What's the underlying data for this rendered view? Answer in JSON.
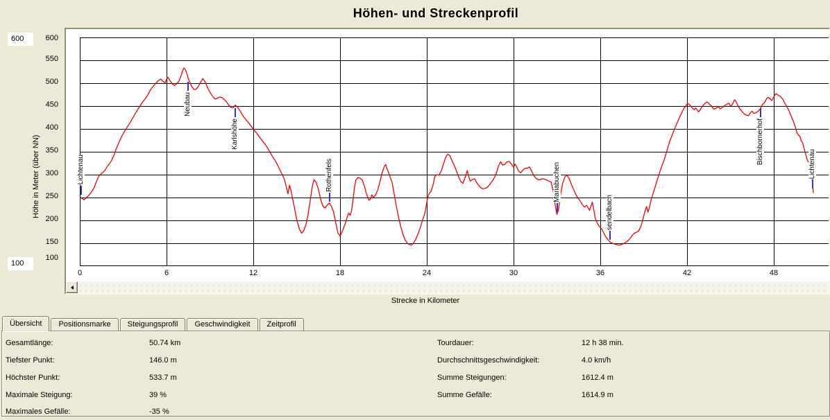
{
  "header": {
    "title": "Höhen- und Streckenprofil"
  },
  "colors": {
    "window_background": "#ece9d8",
    "plot_background": "#ffffff",
    "grid": "#000000",
    "profile_line": "#f00000",
    "waypoint_marker": "#3333cc"
  },
  "axis_controls": {
    "y_max": "600",
    "y_min": "100"
  },
  "icons": {
    "scroll_left": "left-triangle"
  },
  "chart_data": {
    "type": "line",
    "title": "Höhen- und Streckenprofil",
    "xlabel": "Strecke in Kilometer",
    "ylabel": "Höhe in Meter (über NN)",
    "ylim": [
      100,
      600
    ],
    "xlim": [
      0,
      51.8
    ],
    "x_ticks": [
      0,
      6,
      12,
      18,
      24,
      30,
      36,
      42,
      48
    ],
    "y_ticks": [
      600,
      550,
      500,
      450,
      400,
      350,
      300,
      250,
      200,
      150,
      100
    ],
    "grid": true,
    "series_color": "#f00000",
    "marker_color": "#3333cc",
    "waypoints": [
      {
        "name": "Lichtenau",
        "km": 0.1,
        "elevation": 252,
        "side": "above"
      },
      {
        "name": "Neubau",
        "km": 7.5,
        "elevation": 508,
        "side": "below"
      },
      {
        "name": "Karlshöhe",
        "km": 10.75,
        "elevation": 450,
        "side": "below"
      },
      {
        "name": "Rothenfels",
        "km": 17.3,
        "elevation": 236,
        "side": "above"
      },
      {
        "name": "Mariabuchen",
        "km": 33.0,
        "elevation": 214,
        "side": "above"
      },
      {
        "name": "sendelbach",
        "km": 36.65,
        "elevation": 153,
        "side": "above"
      },
      {
        "name": "Bischbornerhof",
        "km": 47.1,
        "elevation": 450,
        "side": "below"
      },
      {
        "name": "Lichtenau",
        "km": 50.68,
        "elevation": 265,
        "side": "above"
      }
    ],
    "profile": [
      [
        0,
        252
      ],
      [
        0.15,
        248
      ],
      [
        0.3,
        245
      ],
      [
        0.45,
        250
      ],
      [
        0.6,
        254
      ],
      [
        0.8,
        262
      ],
      [
        1,
        272
      ],
      [
        1.15,
        285
      ],
      [
        1.3,
        296
      ],
      [
        1.45,
        301
      ],
      [
        1.6,
        305
      ],
      [
        1.75,
        310
      ],
      [
        1.9,
        318
      ],
      [
        2.05,
        324
      ],
      [
        2.2,
        331
      ],
      [
        2.35,
        342
      ],
      [
        2.5,
        355
      ],
      [
        2.7,
        370
      ],
      [
        2.9,
        384
      ],
      [
        3.1,
        395
      ],
      [
        3.3,
        405
      ],
      [
        3.5,
        415
      ],
      [
        3.7,
        426
      ],
      [
        3.9,
        437
      ],
      [
        4.1,
        447
      ],
      [
        4.3,
        457
      ],
      [
        4.5,
        465
      ],
      [
        4.7,
        474
      ],
      [
        4.9,
        486
      ],
      [
        5.1,
        494
      ],
      [
        5.3,
        501
      ],
      [
        5.45,
        506
      ],
      [
        5.6,
        509
      ],
      [
        5.75,
        504
      ],
      [
        5.9,
        501
      ],
      [
        6,
        508
      ],
      [
        6.1,
        513
      ],
      [
        6.25,
        505
      ],
      [
        6.4,
        498
      ],
      [
        6.55,
        495
      ],
      [
        6.7,
        499
      ],
      [
        6.85,
        504
      ],
      [
        7,
        516
      ],
      [
        7.1,
        526
      ],
      [
        7.2,
        533
      ],
      [
        7.3,
        530
      ],
      [
        7.4,
        521
      ],
      [
        7.5,
        510
      ],
      [
        7.6,
        503
      ],
      [
        7.75,
        492
      ],
      [
        7.9,
        486
      ],
      [
        8.05,
        487
      ],
      [
        8.2,
        493
      ],
      [
        8.35,
        502
      ],
      [
        8.5,
        510
      ],
      [
        8.65,
        504
      ],
      [
        8.8,
        493
      ],
      [
        8.95,
        483
      ],
      [
        9.1,
        475
      ],
      [
        9.25,
        469
      ],
      [
        9.4,
        465
      ],
      [
        9.55,
        468
      ],
      [
        9.7,
        470
      ],
      [
        9.85,
        468
      ],
      [
        10,
        464
      ],
      [
        10.15,
        459
      ],
      [
        10.3,
        452
      ],
      [
        10.45,
        447
      ],
      [
        10.6,
        446
      ],
      [
        10.75,
        452
      ],
      [
        10.9,
        448
      ],
      [
        11.05,
        441
      ],
      [
        11.2,
        433
      ],
      [
        11.4,
        424
      ],
      [
        11.6,
        416
      ],
      [
        11.8,
        408
      ],
      [
        12,
        400
      ],
      [
        12.2,
        392
      ],
      [
        12.4,
        383
      ],
      [
        12.6,
        375
      ],
      [
        12.8,
        367
      ],
      [
        13,
        358
      ],
      [
        13.2,
        346
      ],
      [
        13.4,
        336
      ],
      [
        13.6,
        326
      ],
      [
        13.8,
        313
      ],
      [
        14,
        300
      ],
      [
        14.15,
        290
      ],
      [
        14.3,
        271
      ],
      [
        14.4,
        258
      ],
      [
        14.5,
        277
      ],
      [
        14.6,
        266
      ],
      [
        14.75,
        242
      ],
      [
        14.9,
        219
      ],
      [
        15.05,
        196
      ],
      [
        15.2,
        180
      ],
      [
        15.35,
        172
      ],
      [
        15.5,
        178
      ],
      [
        15.65,
        192
      ],
      [
        15.8,
        215
      ],
      [
        15.95,
        247
      ],
      [
        16.1,
        277
      ],
      [
        16.2,
        289
      ],
      [
        16.35,
        283
      ],
      [
        16.5,
        268
      ],
      [
        16.65,
        247
      ],
      [
        16.8,
        232
      ],
      [
        16.95,
        227
      ],
      [
        17.1,
        233
      ],
      [
        17.25,
        238
      ],
      [
        17.4,
        231
      ],
      [
        17.55,
        219
      ],
      [
        17.7,
        196
      ],
      [
        17.85,
        172
      ],
      [
        18,
        166
      ],
      [
        18.1,
        172
      ],
      [
        18.2,
        180
      ],
      [
        18.35,
        192
      ],
      [
        18.5,
        208
      ],
      [
        18.6,
        216
      ],
      [
        18.7,
        211
      ],
      [
        18.8,
        222
      ],
      [
        18.9,
        245
      ],
      [
        19,
        272
      ],
      [
        19.1,
        289
      ],
      [
        19.25,
        294
      ],
      [
        19.4,
        292
      ],
      [
        19.55,
        288
      ],
      [
        19.7,
        273
      ],
      [
        19.85,
        256
      ],
      [
        20,
        244
      ],
      [
        20.1,
        247
      ],
      [
        20.2,
        256
      ],
      [
        20.3,
        250
      ],
      [
        20.45,
        255
      ],
      [
        20.6,
        266
      ],
      [
        20.75,
        283
      ],
      [
        20.9,
        303
      ],
      [
        21.05,
        317
      ],
      [
        21.15,
        322
      ],
      [
        21.3,
        309
      ],
      [
        21.45,
        296
      ],
      [
        21.6,
        283
      ],
      [
        21.75,
        257
      ],
      [
        21.9,
        230
      ],
      [
        22.05,
        206
      ],
      [
        22.2,
        186
      ],
      [
        22.35,
        170
      ],
      [
        22.5,
        157
      ],
      [
        22.65,
        150
      ],
      [
        22.8,
        147
      ],
      [
        22.95,
        146
      ],
      [
        23.1,
        151
      ],
      [
        23.25,
        160
      ],
      [
        23.4,
        171
      ],
      [
        23.55,
        184
      ],
      [
        23.7,
        200
      ],
      [
        23.85,
        214
      ],
      [
        23.95,
        230
      ],
      [
        24.05,
        248
      ],
      [
        24.15,
        258
      ],
      [
        24.3,
        264
      ],
      [
        24.45,
        280
      ],
      [
        24.55,
        296
      ],
      [
        24.7,
        300
      ],
      [
        24.85,
        299
      ],
      [
        25,
        308
      ],
      [
        25.15,
        323
      ],
      [
        25.3,
        337
      ],
      [
        25.45,
        345
      ],
      [
        25.6,
        341
      ],
      [
        25.75,
        330
      ],
      [
        25.9,
        320
      ],
      [
        26.05,
        308
      ],
      [
        26.2,
        295
      ],
      [
        26.35,
        285
      ],
      [
        26.5,
        281
      ],
      [
        26.65,
        294
      ],
      [
        26.8,
        309
      ],
      [
        26.9,
        296
      ],
      [
        27,
        286
      ],
      [
        27.15,
        289
      ],
      [
        27.3,
        291
      ],
      [
        27.45,
        283
      ],
      [
        27.6,
        276
      ],
      [
        27.75,
        271
      ],
      [
        27.9,
        269
      ],
      [
        28.05,
        270
      ],
      [
        28.2,
        273
      ],
      [
        28.4,
        280
      ],
      [
        28.6,
        289
      ],
      [
        28.8,
        302
      ],
      [
        28.95,
        318
      ],
      [
        29.1,
        328
      ],
      [
        29.25,
        321
      ],
      [
        29.4,
        323
      ],
      [
        29.55,
        328
      ],
      [
        29.7,
        329
      ],
      [
        29.85,
        323
      ],
      [
        30,
        316
      ],
      [
        30.1,
        323
      ],
      [
        30.2,
        318
      ],
      [
        30.35,
        308
      ],
      [
        30.5,
        304
      ],
      [
        30.65,
        310
      ],
      [
        30.8,
        314
      ],
      [
        30.95,
        314
      ],
      [
        31.1,
        317
      ],
      [
        31.25,
        308
      ],
      [
        31.4,
        298
      ],
      [
        31.55,
        292
      ],
      [
        31.7,
        289
      ],
      [
        31.85,
        289
      ],
      [
        32,
        291
      ],
      [
        32.15,
        290
      ],
      [
        32.3,
        288
      ],
      [
        32.45,
        286
      ],
      [
        32.6,
        284
      ],
      [
        32.75,
        262
      ],
      [
        32.9,
        230
      ],
      [
        33,
        213
      ],
      [
        33.1,
        222
      ],
      [
        33.25,
        256
      ],
      [
        33.4,
        281
      ],
      [
        33.55,
        295
      ],
      [
        33.7,
        299
      ],
      [
        33.85,
        291
      ],
      [
        34,
        279
      ],
      [
        34.15,
        268
      ],
      [
        34.3,
        257
      ],
      [
        34.45,
        249
      ],
      [
        34.6,
        243
      ],
      [
        34.75,
        235
      ],
      [
        34.9,
        229
      ],
      [
        35.05,
        233
      ],
      [
        35.15,
        228
      ],
      [
        35.25,
        222
      ],
      [
        35.35,
        231
      ],
      [
        35.45,
        240
      ],
      [
        35.55,
        224
      ],
      [
        35.65,
        205
      ],
      [
        35.8,
        193
      ],
      [
        35.95,
        186
      ],
      [
        36.1,
        181
      ],
      [
        36.25,
        172
      ],
      [
        36.4,
        163
      ],
      [
        36.55,
        157
      ],
      [
        36.7,
        152
      ],
      [
        36.85,
        150
      ],
      [
        37,
        148
      ],
      [
        37.15,
        147
      ],
      [
        37.3,
        146
      ],
      [
        37.45,
        147
      ],
      [
        37.6,
        149
      ],
      [
        37.75,
        152
      ],
      [
        37.9,
        155
      ],
      [
        38.05,
        160
      ],
      [
        38.2,
        167
      ],
      [
        38.35,
        172
      ],
      [
        38.5,
        174
      ],
      [
        38.65,
        177
      ],
      [
        38.8,
        186
      ],
      [
        38.95,
        203
      ],
      [
        39.1,
        221
      ],
      [
        39.2,
        230
      ],
      [
        39.3,
        218
      ],
      [
        39.4,
        228
      ],
      [
        39.5,
        243
      ],
      [
        39.65,
        259
      ],
      [
        39.8,
        274
      ],
      [
        39.95,
        290
      ],
      [
        40.1,
        304
      ],
      [
        40.25,
        318
      ],
      [
        40.4,
        331
      ],
      [
        40.55,
        346
      ],
      [
        40.7,
        362
      ],
      [
        40.85,
        377
      ],
      [
        41,
        389
      ],
      [
        41.15,
        401
      ],
      [
        41.3,
        412
      ],
      [
        41.45,
        423
      ],
      [
        41.6,
        433
      ],
      [
        41.75,
        443
      ],
      [
        41.9,
        450
      ],
      [
        42.05,
        456
      ],
      [
        42.2,
        452
      ],
      [
        42.35,
        446
      ],
      [
        42.5,
        442
      ],
      [
        42.6,
        446
      ],
      [
        42.7,
        442
      ],
      [
        42.8,
        437
      ],
      [
        42.95,
        444
      ],
      [
        43.1,
        451
      ],
      [
        43.25,
        456
      ],
      [
        43.4,
        459
      ],
      [
        43.55,
        454
      ],
      [
        43.7,
        450
      ],
      [
        43.85,
        443
      ],
      [
        44,
        445
      ],
      [
        44.15,
        449
      ],
      [
        44.3,
        444
      ],
      [
        44.45,
        447
      ],
      [
        44.6,
        451
      ],
      [
        44.75,
        454
      ],
      [
        44.9,
        456
      ],
      [
        45,
        450
      ],
      [
        45.1,
        452
      ],
      [
        45.2,
        458
      ],
      [
        45.3,
        464
      ],
      [
        45.4,
        459
      ],
      [
        45.5,
        452
      ],
      [
        45.65,
        444
      ],
      [
        45.8,
        438
      ],
      [
        45.95,
        433
      ],
      [
        46.1,
        430
      ],
      [
        46.25,
        429
      ],
      [
        46.4,
        436
      ],
      [
        46.5,
        439
      ],
      [
        46.6,
        434
      ],
      [
        46.75,
        435
      ],
      [
        46.9,
        438
      ],
      [
        47.05,
        443
      ],
      [
        47.2,
        453
      ],
      [
        47.35,
        457
      ],
      [
        47.5,
        466
      ],
      [
        47.6,
        469
      ],
      [
        47.75,
        466
      ],
      [
        47.85,
        462
      ],
      [
        47.95,
        467
      ],
      [
        48.05,
        473
      ],
      [
        48.15,
        477
      ],
      [
        48.3,
        474
      ],
      [
        48.45,
        471
      ],
      [
        48.6,
        466
      ],
      [
        48.75,
        457
      ],
      [
        48.9,
        449
      ],
      [
        49.05,
        440
      ],
      [
        49.2,
        428
      ],
      [
        49.35,
        417
      ],
      [
        49.5,
        403
      ],
      [
        49.6,
        392
      ],
      [
        49.7,
        387
      ],
      [
        49.8,
        384
      ],
      [
        49.9,
        374
      ],
      [
        50,
        369
      ],
      [
        50.1,
        357
      ],
      [
        50.2,
        345
      ],
      [
        50.3,
        334
      ],
      [
        50.4,
        327
      ],
      [
        50.47,
        331
      ],
      [
        50.55,
        313
      ],
      [
        50.65,
        291
      ],
      [
        50.74,
        260
      ]
    ]
  },
  "tabs": [
    {
      "label": "Übersicht",
      "active": true
    },
    {
      "label": "Positionsmarke",
      "active": false
    },
    {
      "label": "Steigungsprofil",
      "active": false
    },
    {
      "label": "Geschwindigkeit",
      "active": false
    },
    {
      "label": "Zeitprofil",
      "active": false
    }
  ],
  "stats": {
    "left": [
      {
        "label": "Gesamtlänge:",
        "value": "50.74 km"
      },
      {
        "label": "Tiefster Punkt:",
        "value": "146.0 m"
      },
      {
        "label": "Höchster Punkt:",
        "value": "533.7 m"
      },
      {
        "label": "Maximale Steigung:",
        "value": "39 %"
      },
      {
        "label": "Maximales Gefälle:",
        "value": "-35 %"
      }
    ],
    "right": [
      {
        "label": "Tourdauer:",
        "value": "12 h 38 min."
      },
      {
        "label": "Durchschnittsgeschwindigkeit:",
        "value": "4.0 km/h"
      },
      {
        "label": "Summe Steigungen:",
        "value": "1612.4 m"
      },
      {
        "label": "Summe Gefälle:",
        "value": "1614.9 m"
      }
    ]
  }
}
